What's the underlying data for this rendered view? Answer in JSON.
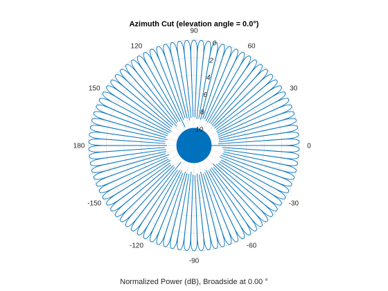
{
  "figure": {
    "background": "#ffffff"
  },
  "chart_data": {
    "type": "line",
    "subtype": "polar",
    "title": "Azimuth Cut (elevation angle = 0.0°)",
    "xlabel": "Normalized Power (dB), Broadside at 0.00 °",
    "theta_tick_labels": [
      "0",
      "30",
      "60",
      "90",
      "120",
      "150",
      "180",
      "-150",
      "-120",
      "-90",
      "-60",
      "-30"
    ],
    "theta_tick_values_deg": [
      0,
      30,
      60,
      90,
      120,
      150,
      180,
      210,
      240,
      270,
      300,
      330
    ],
    "r_tick_labels": [
      "0",
      "2",
      "4",
      "6",
      "8",
      "10"
    ],
    "r_tick_values_db": [
      0,
      -2,
      -4,
      -6,
      -8,
      -10
    ],
    "r_range_db": [
      -12,
      0
    ],
    "theta_zero_location": "right",
    "theta_direction": "counterclockwise",
    "grid": true,
    "legend": "none",
    "series": [
      {
        "color": "#0072bd",
        "num_lobes": 90,
        "mainlobe_peak_db": 0,
        "sidelobe_peak_db": 0,
        "null_floor_db": -12
      }
    ],
    "colors": {
      "series": "#0072bd",
      "grid": "#d9d9d9",
      "axis": "#262626"
    }
  }
}
